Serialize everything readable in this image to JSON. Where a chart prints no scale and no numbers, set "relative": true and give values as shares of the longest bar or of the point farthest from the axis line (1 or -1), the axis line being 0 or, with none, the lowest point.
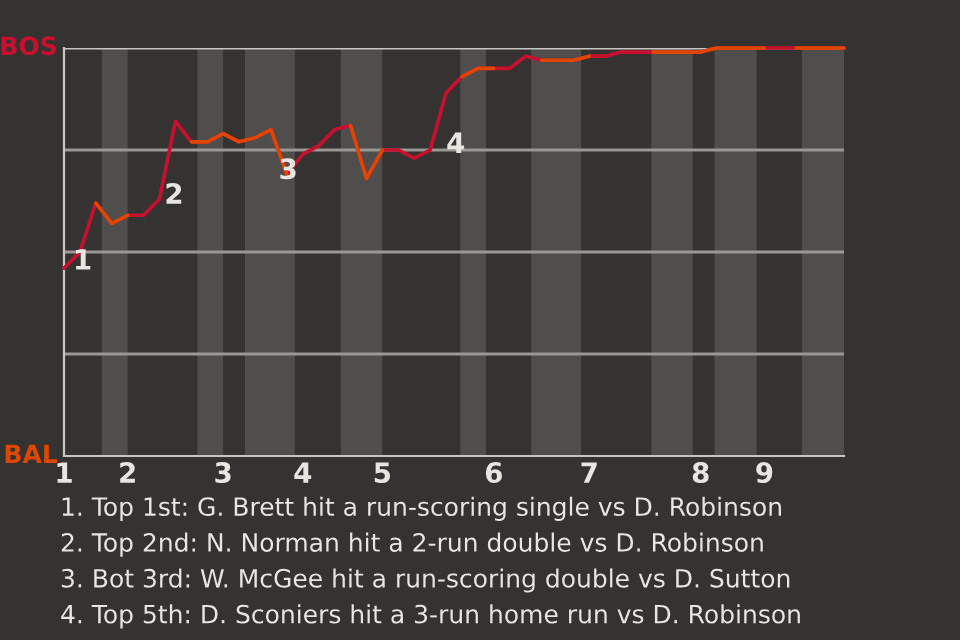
{
  "chart_data": {
    "type": "line",
    "relative": true,
    "categories": [
      "1",
      null,
      null,
      null,
      "2",
      null,
      null,
      null,
      null,
      null,
      "3",
      null,
      null,
      null,
      null,
      "4",
      null,
      null,
      null,
      null,
      "5",
      null,
      null,
      null,
      null,
      null,
      null,
      "6",
      null,
      null,
      null,
      null,
      null,
      "7",
      null,
      null,
      null,
      null,
      null,
      null,
      "8",
      null,
      null,
      null,
      "9",
      null,
      null,
      null,
      null,
      null
    ],
    "series": [
      {
        "color": "#c8102e",
        "values": [
          0.46,
          0.5,
          0.62,
          0.57,
          0.59,
          0.59,
          0.63,
          0.82,
          0.77,
          0.77,
          0.79,
          0.77,
          0.78,
          0.8,
          0.69,
          0.74,
          0.76,
          0.8,
          0.81,
          0.68,
          0.75,
          0.75,
          0.73,
          0.75,
          0.89,
          0.93,
          0.95,
          0.95,
          0.95,
          0.98,
          0.97,
          0.97,
          0.97,
          0.98,
          0.98,
          0.99,
          0.99,
          0.99,
          0.99,
          0.99,
          0.99,
          1,
          1,
          1,
          1,
          1,
          1,
          1,
          1,
          1
        ]
      },
      {
        "color": "#df4601",
        "values": [
          null,
          null,
          0.62,
          0.57,
          0.59,
          null,
          null,
          null,
          0.77,
          0.77,
          0.79,
          0.77,
          0.78,
          0.8,
          0.69,
          null,
          null,
          null,
          0.81,
          0.68,
          0.75,
          null,
          null,
          null,
          null,
          0.93,
          0.95,
          0.95,
          null,
          null,
          0.97,
          0.97,
          0.97,
          0.98,
          null,
          null,
          null,
          0.99,
          0.99,
          0.99,
          0.99,
          1,
          1,
          1,
          1,
          null,
          1,
          1,
          1,
          1
        ]
      }
    ],
    "grid": "y",
    "annotations": [
      "BOS",
      "BAL",
      {
        "text": "1",
        "y": 0.57
      },
      {
        "text": "2",
        "y": 0.82
      },
      {
        "text": "3",
        "y": 0.69
      },
      {
        "text": "4",
        "y": 0.89
      },
      "1. Top 1st: G. Brett hit a run-scoring single vs D. Robinson",
      "2. Top 2nd: N. Norman hit a 2-run double vs D. Robinson",
      "3. Bot 3rd: W. McGee hit a run-scoring double vs D. Sutton",
      "4. Top 5th: D. Sconiers hit a 3-run home run vs D. Robinson"
    ]
  }
}
